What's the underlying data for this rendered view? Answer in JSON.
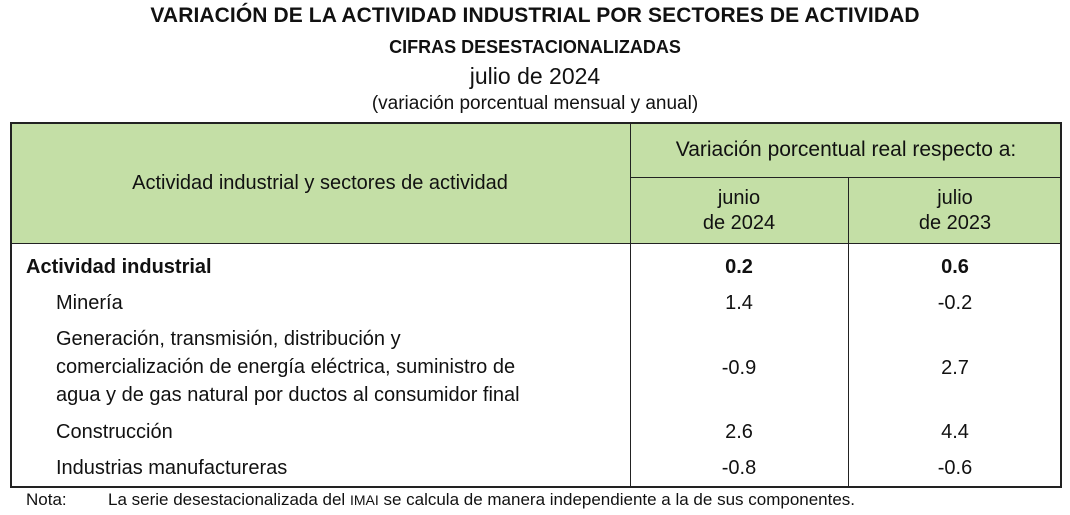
{
  "title": "VARIACIÓN DE LA ACTIVIDAD INDUSTRIAL POR SECTORES DE ACTIVIDAD",
  "subtitle": "CIFRAS DESESTACIONALIZADAS",
  "period": "julio de 2024",
  "units": "(variación porcentual mensual y anual)",
  "table": {
    "header_left": "Actividad industrial y sectores de actividad",
    "header_span": "Variación porcentual real respecto a:",
    "col1": {
      "line1": "junio",
      "line2": "de 2024"
    },
    "col2": {
      "line1": "julio",
      "line2": "de 2023"
    },
    "rows": [
      {
        "label": "Actividad industrial",
        "v1": "0.2",
        "v2": "0.6"
      },
      {
        "label": "Minería",
        "v1": "1.4",
        "v2": "-0.2"
      },
      {
        "label_lines": [
          "Generación, transmisión, distribución y",
          "comercialización de energía eléctrica, suministro de",
          "agua y de gas natural por ductos al consumidor final"
        ],
        "v1": "-0.9",
        "v2": "2.7"
      },
      {
        "label": "Construcción",
        "v1": "2.6",
        "v2": "4.4"
      },
      {
        "label": "Industrias manufactureras",
        "v1": "-0.8",
        "v2": "-0.6"
      }
    ]
  },
  "note": {
    "label": "Nota:",
    "text_before": "La serie desestacionalizada del ",
    "acronym": "IMAI",
    "text_after": " se calcula de manera independiente a la de sus componentes."
  }
}
